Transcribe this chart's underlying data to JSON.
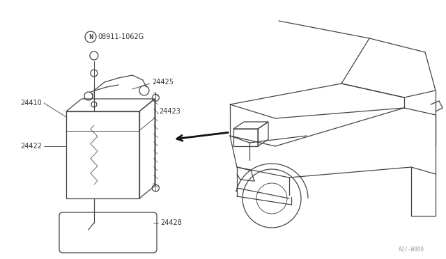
{
  "bg_color": "#ffffff",
  "line_color": "#444444",
  "fig_width": 6.4,
  "fig_height": 3.72,
  "dpi": 100,
  "watermark": "A2/-W000",
  "label_fontsize": 7.0,
  "label_color": "#333333"
}
